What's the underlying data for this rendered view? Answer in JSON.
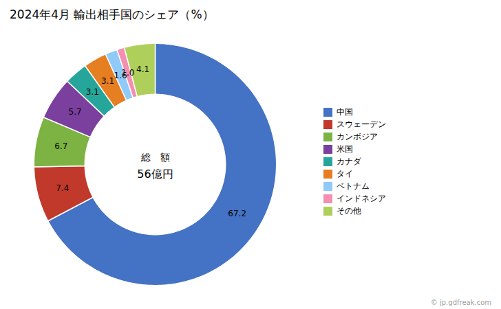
{
  "chart_data": {
    "type": "donut",
    "title": "2024年4月 輸出相手国のシェア（%）",
    "categories": [
      "中国",
      "スウェーデン",
      "カンボジア",
      "米国",
      "カナダ",
      "タイ",
      "ベトナム",
      "インドネシア",
      "その他"
    ],
    "values": [
      67.2,
      7.4,
      6.7,
      5.7,
      3.1,
      3.1,
      1.6,
      1.0,
      4.1
    ],
    "value_labels": [
      "67.2",
      "7.4",
      "6.7",
      "5.7",
      "3.1",
      "3.1",
      "1.6",
      "1.0",
      "4.1"
    ],
    "colors": [
      "#4472C4",
      "#C0392B",
      "#7CB342",
      "#7B3F9E",
      "#26A69A",
      "#E67E22",
      "#90CAF9",
      "#F48FB1",
      "#AECF5A"
    ],
    "data_labels": true,
    "legend": "right",
    "center_label": [
      "総　額",
      "56億円"
    ],
    "annotations": [
      "© jp.gdfreak.com"
    ]
  }
}
